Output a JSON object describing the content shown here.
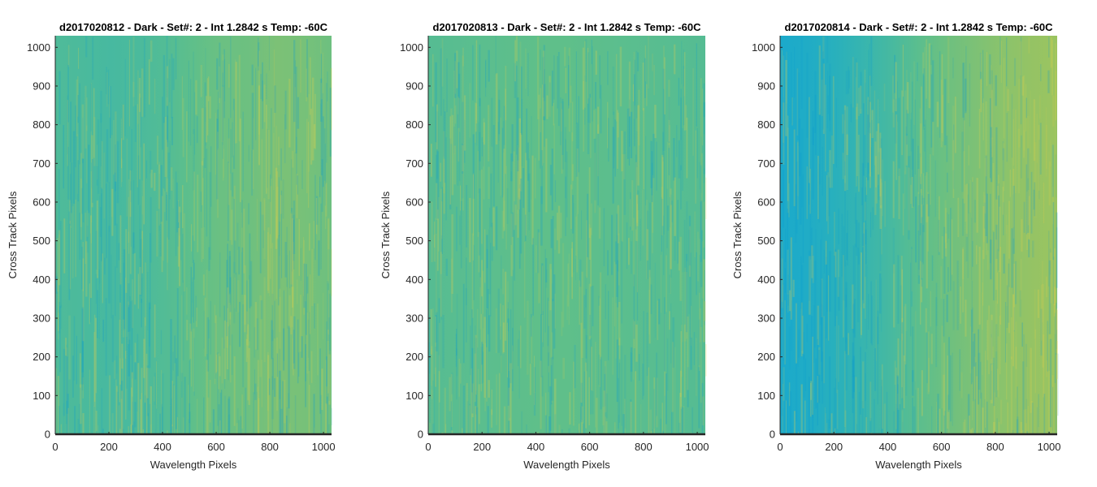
{
  "chart_data": [
    {
      "type": "heatmap",
      "title": "d2017020812 - Dark - Set#: 2 - Int 1.2842 s Temp: -60C",
      "xlabel": "Wavelength Pixels",
      "ylabel": "Cross Track Pixels",
      "xlim": [
        0,
        1030
      ],
      "ylim": [
        0,
        1030
      ],
      "xticks": [
        0,
        200,
        400,
        600,
        800,
        1000
      ],
      "yticks": [
        0,
        100,
        200,
        300,
        400,
        500,
        600,
        700,
        800,
        900,
        1000
      ],
      "colormap": [
        "#0fa5d8",
        "#2db2b8",
        "#5fbf8a",
        "#9bc460",
        "#d3c040"
      ],
      "column_profile": [
        0.42,
        0.4,
        0.38,
        0.4,
        0.44,
        0.5,
        0.55,
        0.56,
        0.62,
        0.6,
        0.56
      ]
    },
    {
      "type": "heatmap",
      "title": "d2017020813 - Dark - Set#: 2 - Int 1.2842 s Temp: -60C",
      "xlabel": "Wavelength Pixels",
      "ylabel": "Cross Track Pixels",
      "xlim": [
        0,
        1030
      ],
      "ylim": [
        0,
        1030
      ],
      "xticks": [
        0,
        200,
        400,
        600,
        800,
        1000
      ],
      "yticks": [
        0,
        100,
        200,
        300,
        400,
        500,
        600,
        700,
        800,
        900,
        1000
      ],
      "colormap": [
        "#0fa5d8",
        "#2db2b8",
        "#5fbf8a",
        "#9bc460",
        "#d3c040"
      ],
      "column_profile": [
        0.45,
        0.47,
        0.48,
        0.49,
        0.5,
        0.5,
        0.49,
        0.48,
        0.47,
        0.46,
        0.45
      ]
    },
    {
      "type": "heatmap",
      "title": "d2017020814 - Dark - Set#: 2 - Int 1.2842 s Temp: -60C",
      "xlabel": "Wavelength Pixels",
      "ylabel": "Cross Track Pixels",
      "xlim": [
        0,
        1030
      ],
      "ylim": [
        0,
        1030
      ],
      "xticks": [
        0,
        200,
        400,
        600,
        800,
        1000
      ],
      "yticks": [
        0,
        100,
        200,
        300,
        400,
        500,
        600,
        700,
        800,
        900,
        1000
      ],
      "colormap": [
        "#0fa5d8",
        "#2db2b8",
        "#5fbf8a",
        "#9bc460",
        "#d3c040"
      ],
      "column_profile": [
        0.1,
        0.14,
        0.22,
        0.3,
        0.38,
        0.48,
        0.56,
        0.62,
        0.68,
        0.72,
        0.75
      ]
    }
  ]
}
